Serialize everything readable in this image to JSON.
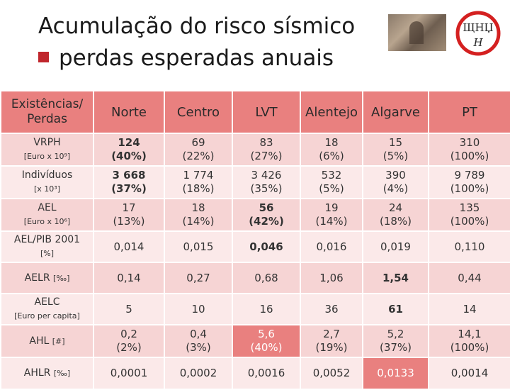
{
  "slide": {
    "title": "Acumulação do risco sísmico",
    "subtitle": "perdas esperadas anuais"
  },
  "table": {
    "headers": [
      "Existências/ Perdas",
      "Norte",
      "Centro",
      "LVT",
      "Alentejo",
      "Algarve",
      "PT"
    ],
    "rows": [
      {
        "label": "VRPH",
        "unit": "[Euro x 10⁹]",
        "cells": [
          [
            "124",
            "(40%)"
          ],
          [
            "69",
            "(22%)"
          ],
          [
            "83",
            "(27%)"
          ],
          [
            "18",
            "(6%)"
          ],
          [
            "15",
            "(5%)"
          ],
          [
            "310",
            "(100%)"
          ]
        ]
      },
      {
        "label": "Indivíduos",
        "unit": "[x 10³]",
        "cells": [
          [
            "3 668",
            "(37%)"
          ],
          [
            "1 774",
            "(18%)"
          ],
          [
            "3 426",
            "(35%)"
          ],
          [
            "532",
            "(5%)"
          ],
          [
            "390",
            "(4%)"
          ],
          [
            "9 789",
            "(100%)"
          ]
        ]
      },
      {
        "label": "AEL",
        "unit": "[Euro x 10⁶]",
        "cells": [
          [
            "17",
            "(13%)"
          ],
          [
            "18",
            "(14%)"
          ],
          [
            "56",
            "(42%)"
          ],
          [
            "19",
            "(14%)"
          ],
          [
            "24",
            "(18%)"
          ],
          [
            "135",
            "(100%)"
          ]
        ]
      },
      {
        "label": "AEL/PIB 2001",
        "unit": "[%]",
        "cells": [
          [
            "0,014"
          ],
          [
            "0,015"
          ],
          [
            "0,046"
          ],
          [
            "0,016"
          ],
          [
            "0,019"
          ],
          [
            "0,110"
          ]
        ]
      },
      {
        "label": "AELR",
        "unit": "[‰]",
        "cells": [
          [
            "0,14"
          ],
          [
            "0,27"
          ],
          [
            "0,68"
          ],
          [
            "1,06"
          ],
          [
            "1,54"
          ],
          [
            "0,44"
          ]
        ]
      },
      {
        "label": "AELC",
        "unit": "[Euro per capita]",
        "cells": [
          [
            "5"
          ],
          [
            "10"
          ],
          [
            "16"
          ],
          [
            "36"
          ],
          [
            "61"
          ],
          [
            "14"
          ]
        ]
      },
      {
        "label": "AHL",
        "unit": "[#]",
        "cells": [
          [
            "0,2",
            "(2%)"
          ],
          [
            "0,4",
            "(3%)"
          ],
          [
            "5,6",
            "(40%)"
          ],
          [
            "2,7",
            "(19%)"
          ],
          [
            "5,2",
            "(37%)"
          ],
          [
            "14,1",
            "(100%)"
          ]
        ]
      },
      {
        "label": "AHLR",
        "unit": "[‰]",
        "cells": [
          [
            "0,0001"
          ],
          [
            "0,0002"
          ],
          [
            "0,0016"
          ],
          [
            "0,0052"
          ],
          [
            "0,0133"
          ],
          [
            "0,0014"
          ]
        ]
      }
    ]
  },
  "logo": {
    "text_top": "ЩHЏ",
    "text_bottom": "H",
    "color": "#d42020"
  }
}
